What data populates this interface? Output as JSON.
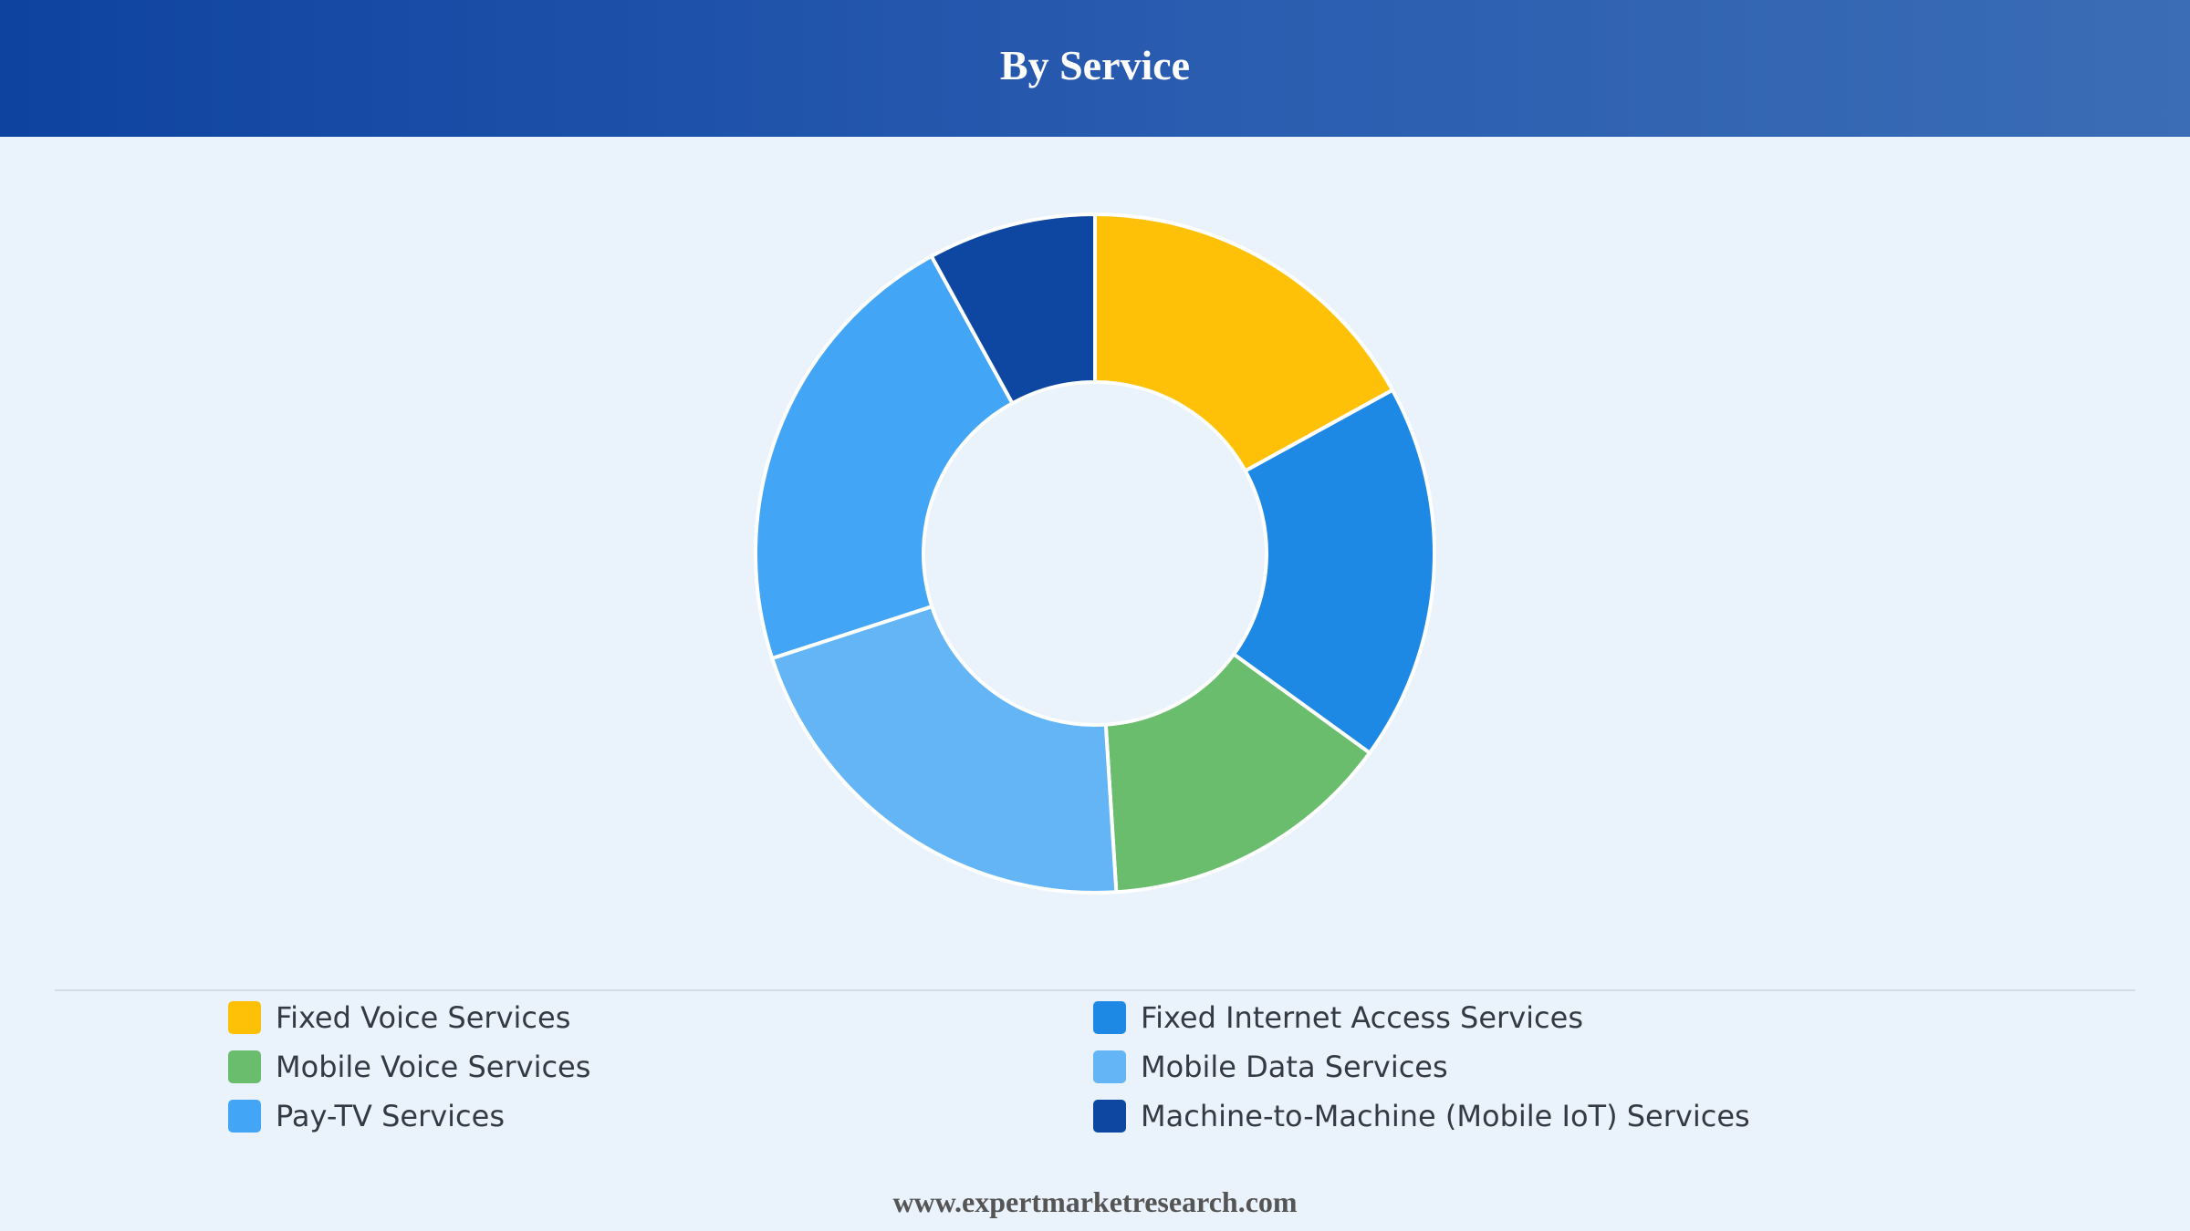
{
  "header": {
    "title": "By Service"
  },
  "footer": {
    "url": "www.expertmarketresearch.com"
  },
  "chart_data": {
    "type": "pie",
    "variant": "donut",
    "title": "By Service",
    "legend_position": "bottom",
    "categories": [
      "Fixed Voice Services",
      "Fixed Internet Access Services",
      "Mobile Voice Services",
      "Mobile Data Services",
      "Pay-TV Services",
      "Machine-to-Machine (Mobile IoT) Services"
    ],
    "values": [
      17,
      18,
      14,
      21,
      22,
      8
    ],
    "colors": [
      "#ffc107",
      "#1e88e5",
      "#69bd6d",
      "#64b5f6",
      "#42a5f5",
      "#0d47a1"
    ]
  },
  "legend": {
    "items": [
      {
        "label": "Fixed Voice Services",
        "color": "#ffc107"
      },
      {
        "label": "Fixed Internet Access Services",
        "color": "#1e88e5"
      },
      {
        "label": "Mobile Voice Services",
        "color": "#69bd6d"
      },
      {
        "label": "Mobile Data Services",
        "color": "#64b5f6"
      },
      {
        "label": "Pay-TV Services",
        "color": "#42a5f5"
      },
      {
        "label": "Machine-to-Machine (Mobile IoT) Services",
        "color": "#0d47a1"
      }
    ]
  }
}
